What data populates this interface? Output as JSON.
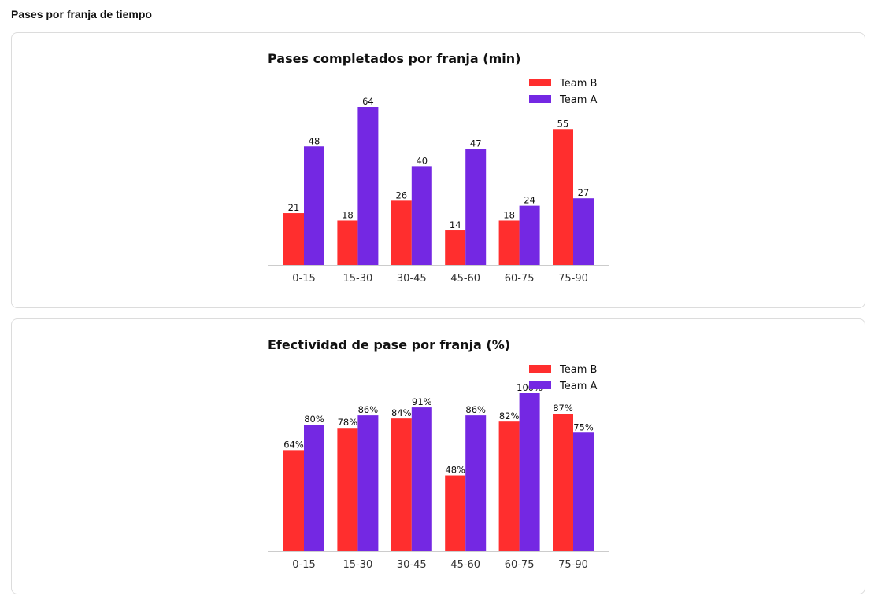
{
  "page": {
    "title": "Pases por franja de tiempo"
  },
  "colors": {
    "team_b": "#ff2e2e",
    "team_a": "#7428e3",
    "axis": "#cccccc"
  },
  "chart_data": [
    {
      "type": "bar",
      "title": "Pases completados por franja (min)",
      "xlabel": "",
      "ylabel": "",
      "categories": [
        "0-15",
        "15-30",
        "30-45",
        "45-60",
        "60-75",
        "75-90"
      ],
      "series": [
        {
          "name": "Team B",
          "values": [
            21,
            18,
            26,
            14,
            18,
            55
          ],
          "labels": [
            "21",
            "18",
            "26",
            "14",
            "18",
            "55"
          ]
        },
        {
          "name": "Team A",
          "values": [
            48,
            64,
            40,
            47,
            24,
            27
          ],
          "labels": [
            "48",
            "64",
            "40",
            "47",
            "24",
            "27"
          ]
        }
      ],
      "ylim": [
        0,
        64
      ],
      "grid": false,
      "legend": "top-right"
    },
    {
      "type": "bar",
      "title": "Efectividad de pase por franja (%)",
      "xlabel": "",
      "ylabel": "",
      "categories": [
        "0-15",
        "15-30",
        "30-45",
        "45-60",
        "60-75",
        "75-90"
      ],
      "series": [
        {
          "name": "Team B",
          "values": [
            64,
            78,
            84,
            48,
            82,
            87
          ],
          "labels": [
            "64%",
            "78%",
            "84%",
            "48%",
            "82%",
            "87%"
          ]
        },
        {
          "name": "Team A",
          "values": [
            80,
            86,
            91,
            86,
            100,
            75
          ],
          "labels": [
            "80%",
            "86%",
            "91%",
            "86%",
            "100%",
            "75%"
          ]
        }
      ],
      "ylim": [
        0,
        100
      ],
      "grid": false,
      "legend": "top-right"
    }
  ]
}
